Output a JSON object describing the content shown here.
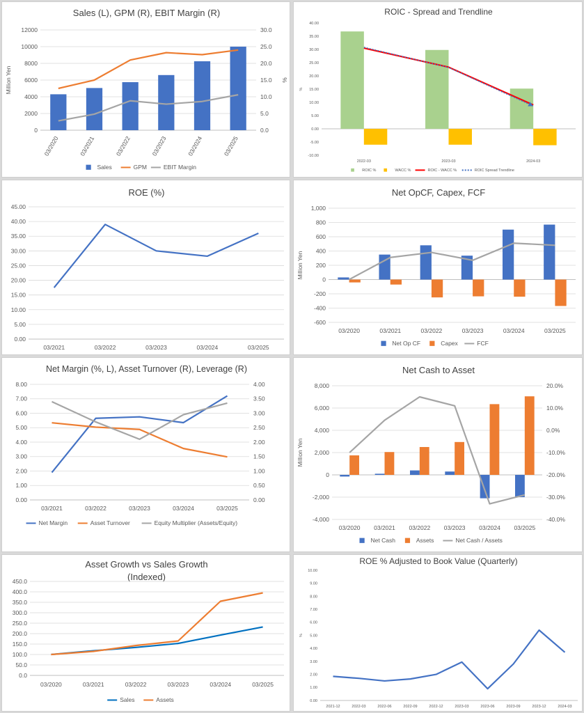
{
  "chart_data": [
    {
      "id": "c1",
      "type": "bar",
      "title": "Sales (L), GPM (R), EBIT Margin (R)",
      "categories": [
        "03/2020",
        "03/2021",
        "03/2022",
        "03/2023",
        "03/2024",
        "03/2025"
      ],
      "ylabel": "Million Yen",
      "y2label": "%",
      "ylim": [
        0,
        12000
      ],
      "yticks": [
        0,
        2000,
        4000,
        6000,
        8000,
        10000,
        12000
      ],
      "y2lim": [
        0,
        30
      ],
      "y2ticks": [
        "0.0",
        "5.0",
        "10.0",
        "15.0",
        "20.0",
        "25.0",
        "30.0"
      ],
      "series": [
        {
          "name": "Sales",
          "kind": "bar",
          "axis": "left",
          "color": "#4472c4",
          "values": [
            4300,
            5050,
            5750,
            6600,
            8250,
            10000
          ]
        },
        {
          "name": "GPM",
          "kind": "line",
          "axis": "right",
          "color": "#ed7d31",
          "values": [
            12.5,
            15.0,
            21.0,
            23.2,
            22.6,
            24.0
          ]
        },
        {
          "name": "EBIT Margin",
          "kind": "line",
          "axis": "right",
          "color": "#a5a5a5",
          "values": [
            2.8,
            4.8,
            8.8,
            7.8,
            8.6,
            10.6
          ]
        }
      ],
      "legend": "bottom",
      "grid": true
    },
    {
      "id": "c2",
      "type": "bar",
      "title": "ROIC - Spread and Trendline",
      "categories": [
        "2022-03",
        "2023-03",
        "2024-03"
      ],
      "ylabel": "%",
      "ylim": [
        -10,
        40
      ],
      "yticks": [
        "-10.00",
        "-5.00",
        "0.00",
        "5.00",
        "10.00",
        "15.00",
        "20.00",
        "25.00",
        "30.00",
        "35.00",
        "40.00"
      ],
      "series": [
        {
          "name": "ROIC %",
          "kind": "bar",
          "color": "#a9d18e",
          "values": [
            36.8,
            29.8,
            15.2
          ]
        },
        {
          "name": "WACC %",
          "kind": "bar",
          "color": "#ffc000",
          "values": [
            -6.0,
            -6.0,
            -6.2
          ]
        },
        {
          "name": "ROIC - WACC %",
          "kind": "line",
          "color": "#ff0000",
          "values": [
            30.5,
            23.3,
            9.0
          ]
        },
        {
          "name": "ROIC Spread Trendline",
          "kind": "trend",
          "color": "#4472c4",
          "values": [
            30.8,
            23.2,
            8.6
          ]
        }
      ],
      "legend": "bottom",
      "grid": false
    },
    {
      "id": "c3",
      "type": "line",
      "title": "ROE (%)",
      "categories": [
        "03/2021",
        "03/2022",
        "03/2023",
        "03/2024",
        "03/2025"
      ],
      "ylim": [
        0,
        45
      ],
      "yticks": [
        "0.00",
        "5.00",
        "10.00",
        "15.00",
        "20.00",
        "25.00",
        "30.00",
        "35.00",
        "40.00",
        "45.00"
      ],
      "series": [
        {
          "name": "ROE",
          "kind": "line",
          "color": "#4472c4",
          "values": [
            17.5,
            39.0,
            30.0,
            28.2,
            36.0
          ]
        }
      ],
      "grid": true
    },
    {
      "id": "c4",
      "type": "bar",
      "title": "Net OpCF, Capex, FCF",
      "categories": [
        "03/2020",
        "03/2021",
        "03/2022",
        "03/2023",
        "03/2024",
        "03/2025"
      ],
      "ylabel": "Million Yen",
      "ylim": [
        -600,
        1000
      ],
      "yticks": [
        "-600",
        "-400",
        "-200",
        "0",
        "200",
        "400",
        "600",
        "800",
        "1,000"
      ],
      "series": [
        {
          "name": "Net Op CF",
          "kind": "bar",
          "color": "#4472c4",
          "values": [
            30,
            350,
            480,
            335,
            700,
            770
          ]
        },
        {
          "name": "Capex",
          "kind": "bar",
          "color": "#ed7d31",
          "values": [
            -40,
            -70,
            -250,
            -235,
            -240,
            -370
          ]
        },
        {
          "name": "FCF",
          "kind": "line",
          "color": "#a5a5a5",
          "values": [
            0,
            310,
            380,
            270,
            510,
            480
          ]
        }
      ],
      "legend": "bottom",
      "grid": true
    },
    {
      "id": "c5",
      "type": "line",
      "title": "Net Margin (%, L), Asset Turnover (R), Leverage (R)",
      "categories": [
        "03/2021",
        "03/2022",
        "03/2023",
        "03/2024",
        "03/2025"
      ],
      "ylim": [
        0,
        8
      ],
      "yticks": [
        "0.00",
        "1.00",
        "2.00",
        "3.00",
        "4.00",
        "5.00",
        "6.00",
        "7.00",
        "8.00"
      ],
      "y2lim": [
        0,
        4
      ],
      "y2ticks": [
        "0.00",
        "0.50",
        "1.00",
        "1.50",
        "2.00",
        "2.50",
        "3.00",
        "3.50",
        "4.00"
      ],
      "series": [
        {
          "name": "Net Margin",
          "kind": "line",
          "axis": "left",
          "color": "#4472c4",
          "values": [
            1.9,
            5.65,
            5.75,
            5.35,
            7.2
          ]
        },
        {
          "name": "Asset Turnover",
          "kind": "line",
          "axis": "right",
          "color": "#ed7d31",
          "values": [
            2.67,
            2.52,
            2.44,
            1.78,
            1.49
          ]
        },
        {
          "name": "Equity Multiplier (Assets/Equity)",
          "kind": "line",
          "axis": "right",
          "color": "#a5a5a5",
          "values": [
            3.4,
            2.7,
            2.1,
            2.95,
            3.35
          ]
        }
      ],
      "legend": "bottom",
      "grid": true
    },
    {
      "id": "c6",
      "type": "bar",
      "title": "Net Cash to Asset",
      "categories": [
        "03/2020",
        "03/2021",
        "03/2022",
        "03/2023",
        "03/2024",
        "03/2025"
      ],
      "ylabel": "Million Yen",
      "ylim": [
        -4000,
        8000
      ],
      "yticks": [
        "-4,000",
        "-2,000",
        "0",
        "2,000",
        "4,000",
        "6,000",
        "8,000"
      ],
      "y2lim": [
        -40,
        20
      ],
      "y2ticks": [
        "-40.0%",
        "-30.0%",
        "-20.0%",
        "-10.0%",
        "0.0%",
        "10.0%",
        "20.0%"
      ],
      "series": [
        {
          "name": "Net Cash",
          "kind": "bar",
          "axis": "left",
          "color": "#4472c4",
          "values": [
            -150,
            100,
            400,
            300,
            -2100,
            -2000
          ]
        },
        {
          "name": "Assets",
          "kind": "bar",
          "axis": "left",
          "color": "#ed7d31",
          "values": [
            1750,
            2050,
            2500,
            2950,
            6350,
            7050
          ]
        },
        {
          "name": "Net Cash / Assets",
          "kind": "line",
          "axis": "right",
          "color": "#a5a5a5",
          "values": [
            -10.0,
            4.5,
            15.0,
            11.0,
            -33.0,
            -29.0
          ]
        }
      ],
      "legend": "bottom",
      "grid": true
    },
    {
      "id": "c7",
      "type": "line",
      "title": "Asset Growth vs Sales Growth (Indexed)",
      "title_lines": [
        "Asset Growth vs Sales Growth",
        "(Indexed)"
      ],
      "categories": [
        "03/2020",
        "03/2021",
        "03/2022",
        "03/2023",
        "03/2024",
        "03/2025"
      ],
      "ylim": [
        0,
        450
      ],
      "yticks": [
        "0.0",
        "50.0",
        "100.0",
        "150.0",
        "200.0",
        "250.0",
        "300.0",
        "350.0",
        "400.0",
        "450.0"
      ],
      "series": [
        {
          "name": "Sales",
          "kind": "line",
          "color": "#0070c0",
          "values": [
            100,
            118,
            134,
            153,
            193,
            232
          ]
        },
        {
          "name": "Assets",
          "kind": "line",
          "color": "#ed7d31",
          "values": [
            100,
            115,
            143,
            165,
            355,
            395
          ]
        }
      ],
      "legend": "bottom",
      "grid": true
    },
    {
      "id": "c8",
      "type": "line",
      "title": "ROE % Adjusted to Book Value (Quarterly)",
      "categories": [
        "2021-12",
        "2022-03",
        "2022-06",
        "2022-09",
        "2022-12",
        "2023-03",
        "2023-06",
        "2023-09",
        "2023-12",
        "2024-03"
      ],
      "ylabel": "%",
      "ylim": [
        0,
        10
      ],
      "yticks": [
        "0.00",
        "1.00",
        "2.00",
        "3.00",
        "4.00",
        "5.00",
        "6.00",
        "7.00",
        "8.00",
        "9.00",
        "10.00"
      ],
      "series": [
        {
          "name": "ROE %",
          "kind": "line",
          "color": "#4472c4",
          "values": [
            1.85,
            1.7,
            1.5,
            1.65,
            2.0,
            2.95,
            0.9,
            2.8,
            5.4,
            3.7
          ]
        }
      ],
      "grid": false
    }
  ]
}
